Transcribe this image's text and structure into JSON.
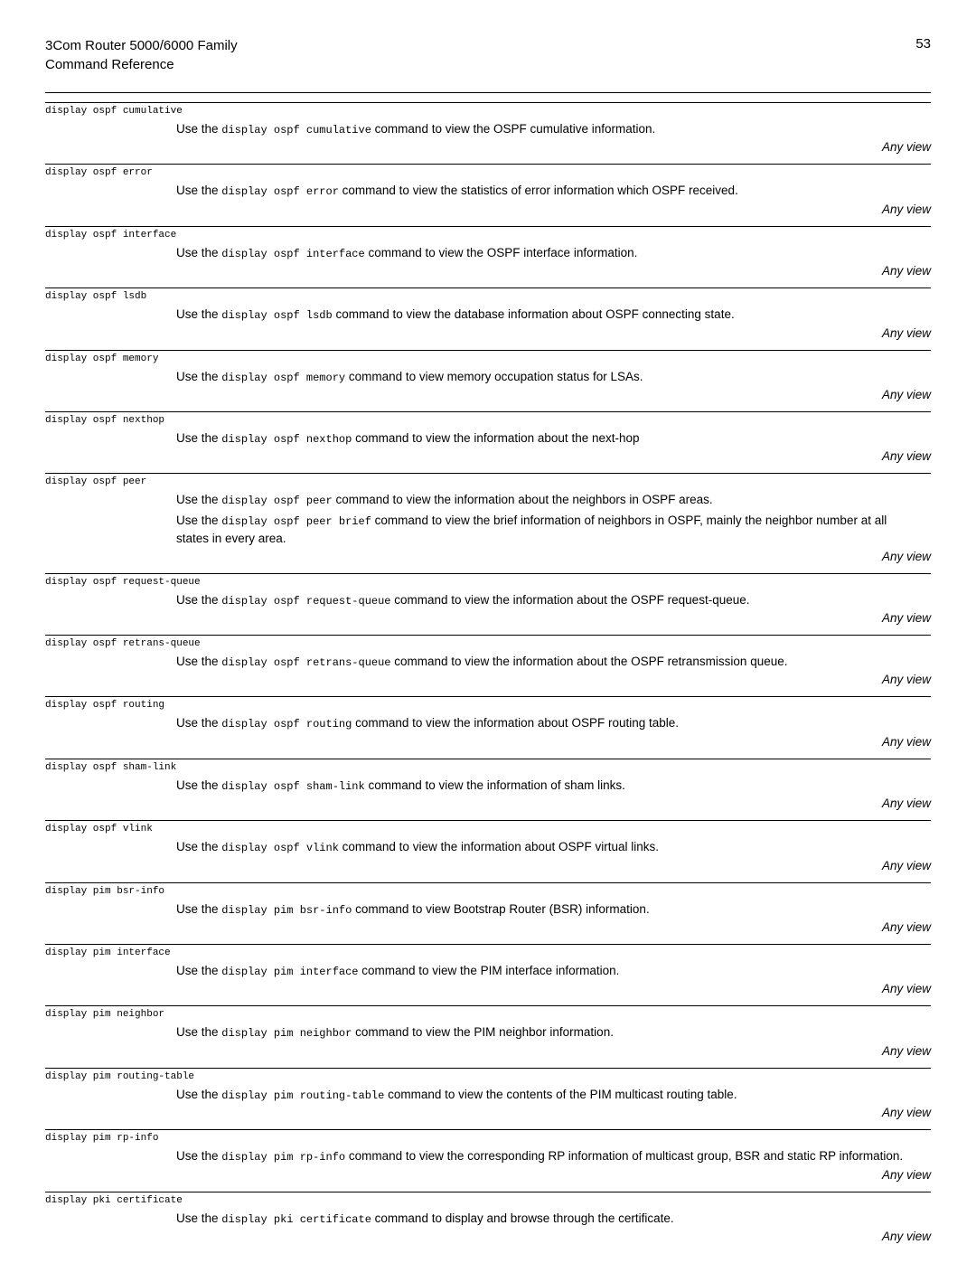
{
  "header": {
    "product": "3Com Router 5000/6000 Family",
    "subtitle": "Command Reference",
    "page": "53"
  },
  "anyview": "Any view",
  "usethe": "Use the ",
  "entries": [
    {
      "cmd": "display ospf cumulative",
      "paras": [
        {
          "pre": "Use the ",
          "code": "display ospf cumulative",
          "post": " command to view the OSPF cumulative information."
        }
      ]
    },
    {
      "cmd": "display ospf error",
      "paras": [
        {
          "pre": "Use the ",
          "code": "display ospf error",
          "post": " command to view the statistics of error information which OSPF received."
        }
      ]
    },
    {
      "cmd": "display ospf interface",
      "paras": [
        {
          "pre": "Use the ",
          "code": "display ospf interface",
          "post": " command to view the OSPF interface information."
        }
      ]
    },
    {
      "cmd": "display ospf lsdb",
      "paras": [
        {
          "pre": "Use the ",
          "code": "display ospf lsdb",
          "post": " command to view the database information about OSPF connecting state."
        }
      ]
    },
    {
      "cmd": "display ospf memory",
      "paras": [
        {
          "pre": "Use the ",
          "code": "display ospf memory",
          "post": " command to view memory occupation status for LSAs."
        }
      ]
    },
    {
      "cmd": "display ospf nexthop",
      "paras": [
        {
          "pre": "Use the ",
          "code": "display ospf nexthop",
          "post": " command to view the information about the next-hop"
        }
      ]
    },
    {
      "cmd": "display ospf peer",
      "paras": [
        {
          "pre": "Use the ",
          "code": "display ospf peer",
          "post": " command to view the information about the neighbors in OSPF areas."
        },
        {
          "pre": "Use the ",
          "code": "display ospf peer brief",
          "post": " command to view the brief information of neighbors in OSPF, mainly the neighbor number at all states in every area."
        }
      ]
    },
    {
      "cmd": "display ospf request-queue",
      "paras": [
        {
          "pre": "Use the ",
          "code": "display ospf request-queue",
          "post": " command to view the information about the OSPF request-queue."
        }
      ]
    },
    {
      "cmd": "display ospf retrans-queue",
      "paras": [
        {
          "pre": "Use the ",
          "code": "display ospf retrans-queue",
          "post": " command to view the information about the OSPF retransmission queue."
        }
      ]
    },
    {
      "cmd": "display ospf routing",
      "paras": [
        {
          "pre": "Use the ",
          "code": "display ospf routing",
          "post": " command to view the information about OSPF routing table."
        }
      ]
    },
    {
      "cmd": "display ospf sham-link",
      "paras": [
        {
          "pre": "Use the ",
          "code": "display ospf sham-link",
          "post": " command to view the information of sham links."
        }
      ]
    },
    {
      "cmd": "display ospf vlink",
      "paras": [
        {
          "pre": "Use the ",
          "code": "display ospf vlink",
          "post": " command to view the information about OSPF virtual links."
        }
      ]
    },
    {
      "cmd": "display pim bsr-info",
      "paras": [
        {
          "pre": "Use the ",
          "code": "display pim bsr-info",
          "post": " command to view Bootstrap Router (BSR) information."
        }
      ]
    },
    {
      "cmd": "display pim interface",
      "paras": [
        {
          "pre": "Use the ",
          "code": "display pim interface",
          "post": " command to view the PIM interface information."
        }
      ]
    },
    {
      "cmd": "display pim neighbor",
      "paras": [
        {
          "pre": "Use the ",
          "code": "display pim neighbor",
          "post": " command to view the PIM neighbor information."
        }
      ]
    },
    {
      "cmd": "display pim routing-table",
      "paras": [
        {
          "pre": "Use the ",
          "code": "display pim routing-table",
          "post": " command to view the contents of the PIM multicast routing table."
        }
      ]
    },
    {
      "cmd": "display pim rp-info",
      "paras": [
        {
          "pre": "Use the ",
          "code": "display pim rp-info",
          "post": " command to view the corresponding RP information of multicast group, BSR and static RP information."
        }
      ]
    },
    {
      "cmd": "display pki certificate",
      "paras": [
        {
          "pre": "Use the ",
          "code": "display pki certificate",
          "post": " command to display and browse through the certificate."
        }
      ]
    }
  ]
}
